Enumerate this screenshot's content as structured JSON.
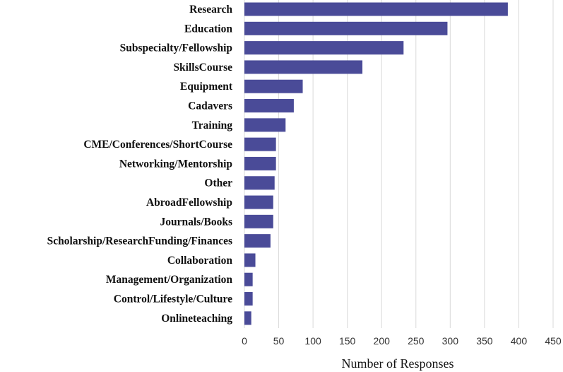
{
  "chart_data": {
    "type": "bar",
    "orientation": "horizontal",
    "title": "",
    "xlabel": "Number of Responses",
    "ylabel": "",
    "xlim": [
      0,
      450
    ],
    "xticks": [
      0,
      50,
      100,
      150,
      200,
      250,
      300,
      350,
      400,
      450
    ],
    "xtick_labels": [
      "0",
      "50",
      "100",
      "150",
      "200",
      "250",
      "300",
      "350",
      "400",
      "450"
    ],
    "grid": true,
    "bar_color": "#4a4b98",
    "categories": [
      "Research",
      "Education",
      "Subspecialty/Fellowship",
      "SkillsCourse",
      "Equipment",
      "Cadavers",
      "Training",
      "CME/Conferences/ShortCourse",
      "Networking/Mentorship",
      "Other",
      "AbroadFellowship",
      "Journals/Books",
      "Scholarship/ResearchFunding/Finances",
      "Collaboration",
      "Management/Organization",
      "Control/Lifestyle/Culture",
      "Onlineteaching"
    ],
    "values": [
      384,
      296,
      232,
      172,
      85,
      72,
      60,
      46,
      46,
      44,
      42,
      42,
      38,
      16,
      12,
      12,
      10
    ]
  }
}
